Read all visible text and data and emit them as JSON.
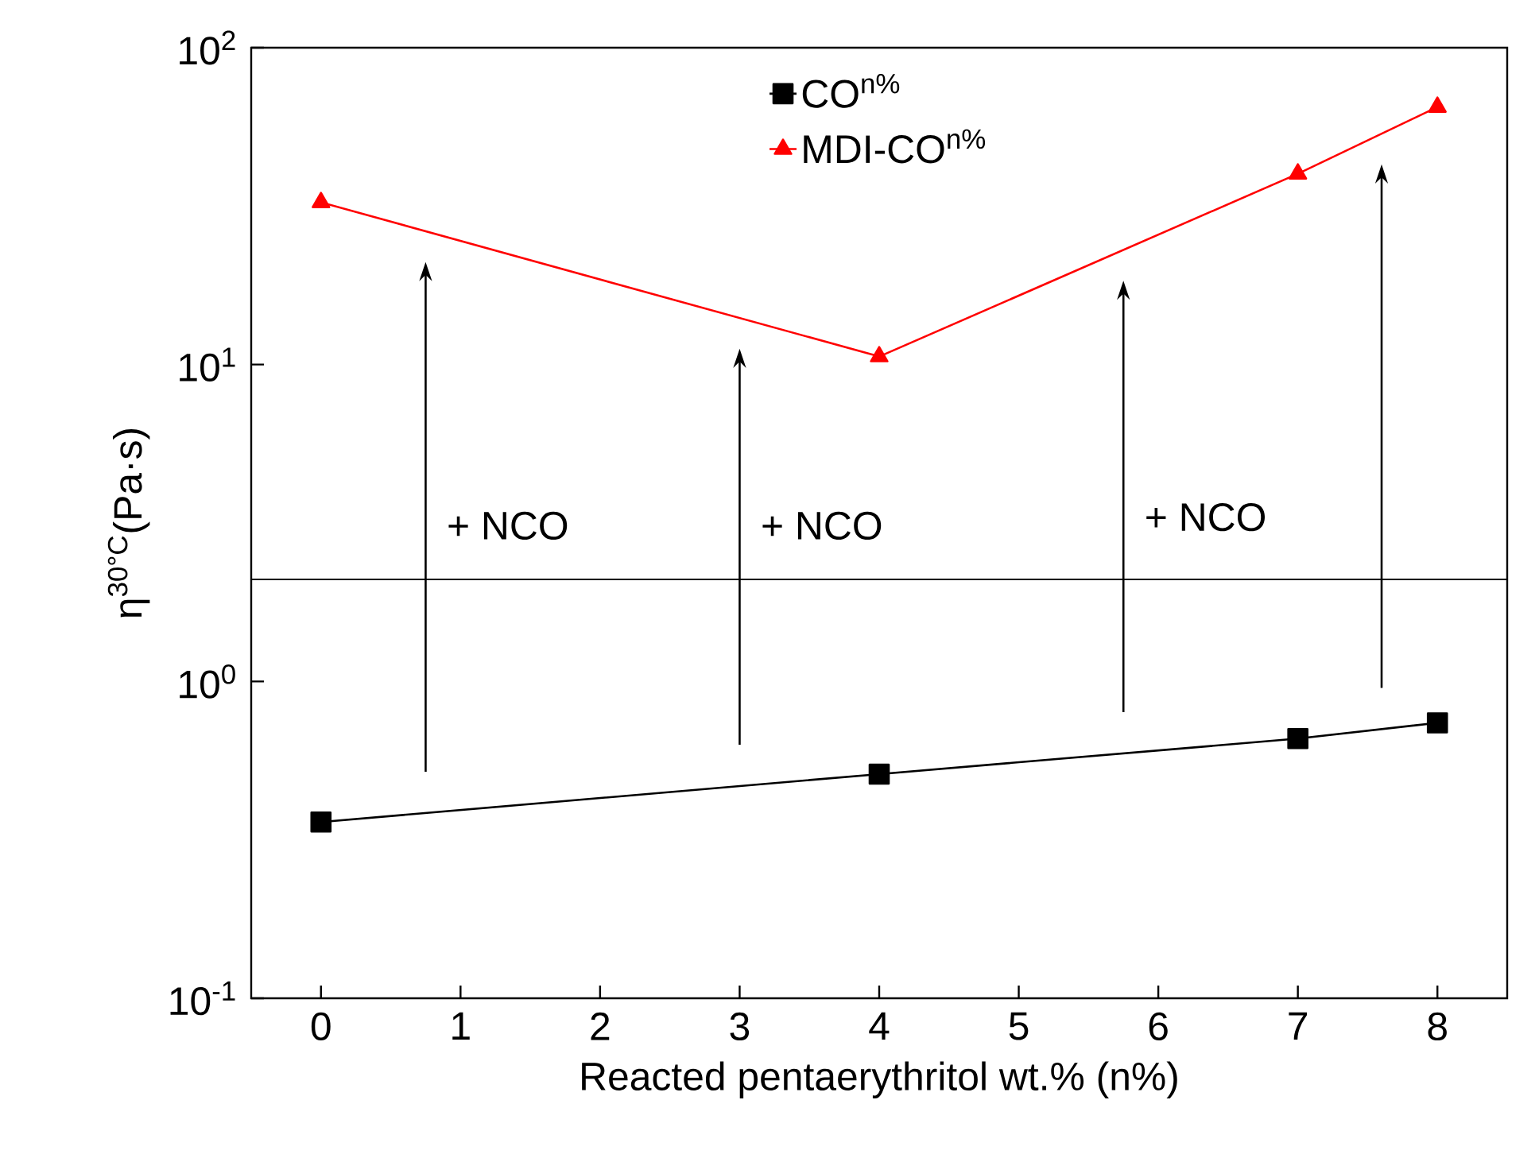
{
  "chart_data": {
    "type": "line",
    "xlabel": "Reacted pentaerythritol wt.% (n%)",
    "ylabel": "η$^{30°C}$(Pa·s)",
    "x": [
      0,
      4,
      7,
      8
    ],
    "series": [
      {
        "name": "CO$^{n%}$",
        "color": "#000000",
        "marker": "square",
        "values": [
          0.36,
          0.51,
          0.66,
          0.74
        ]
      },
      {
        "name": "MDI-CO$^{n%}$",
        "color": "#ff0000",
        "marker": "triangle",
        "values": [
          32.5,
          10.6,
          40,
          65
        ]
      }
    ],
    "log": "y",
    "xlim": [
      -0.5,
      8.5
    ],
    "xticks": [
      0,
      1,
      2,
      3,
      4,
      5,
      6,
      7,
      8
    ],
    "ylim": [
      0.1,
      100
    ],
    "yticks": [
      {
        "value": 0.1,
        "label": "10$^{-1}$"
      },
      {
        "value": 1,
        "label": "10$^{0}$"
      },
      {
        "value": 10,
        "label": "10$^{1}$"
      },
      {
        "value": 100,
        "label": "10$^{2}$"
      }
    ],
    "legend": "top",
    "grid": false,
    "line_style": "solid",
    "ref_lines": [
      {
        "axis": "y",
        "value": 2.1,
        "color": "#000000"
      }
    ],
    "annotations": [
      "+ NCO",
      "+ NCO",
      "+ NCO"
    ]
  }
}
